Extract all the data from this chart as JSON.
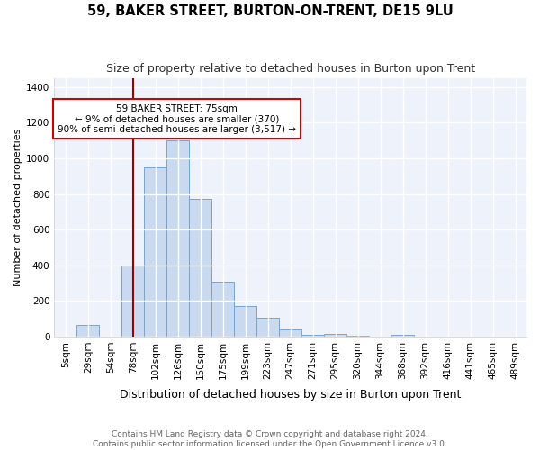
{
  "title": "59, BAKER STREET, BURTON-ON-TRENT, DE15 9LU",
  "subtitle": "Size of property relative to detached houses in Burton upon Trent",
  "xlabel": "Distribution of detached houses by size in Burton upon Trent",
  "ylabel": "Number of detached properties",
  "footnote1": "Contains HM Land Registry data © Crown copyright and database right 2024.",
  "footnote2": "Contains public sector information licensed under the Open Government Licence v3.0.",
  "categories": [
    "5sqm",
    "29sqm",
    "54sqm",
    "78sqm",
    "102sqm",
    "126sqm",
    "150sqm",
    "175sqm",
    "199sqm",
    "223sqm",
    "247sqm",
    "271sqm",
    "295sqm",
    "320sqm",
    "344sqm",
    "368sqm",
    "392sqm",
    "416sqm",
    "441sqm",
    "465sqm",
    "489sqm"
  ],
  "values": [
    0,
    65,
    0,
    400,
    950,
    1100,
    775,
    310,
    170,
    105,
    40,
    12,
    15,
    5,
    0,
    12,
    0,
    0,
    0,
    0,
    0
  ],
  "bar_color": "#c8d9f0",
  "bar_edge_color": "#7aa3cc",
  "vline_color": "#990000",
  "vline_x": 3.0,
  "annotation_text_line1": "59 BAKER STREET: 75sqm",
  "annotation_text_line2": "← 9% of detached houses are smaller (370)",
  "annotation_text_line3": "90% of semi-detached houses are larger (3,517) →",
  "annotation_box_color": "white",
  "annotation_box_edge_color": "#cc0000",
  "ylim": [
    0,
    1450
  ],
  "yticks": [
    0,
    200,
    400,
    600,
    800,
    1000,
    1200,
    1400
  ],
  "bg_color": "#ffffff",
  "plot_bg_color": "#eef2fb",
  "grid_color": "#ffffff",
  "title_fontsize": 10.5,
  "subtitle_fontsize": 9,
  "ylabel_fontsize": 8,
  "xlabel_fontsize": 9,
  "tick_fontsize": 7.5,
  "footnote_fontsize": 6.5
}
